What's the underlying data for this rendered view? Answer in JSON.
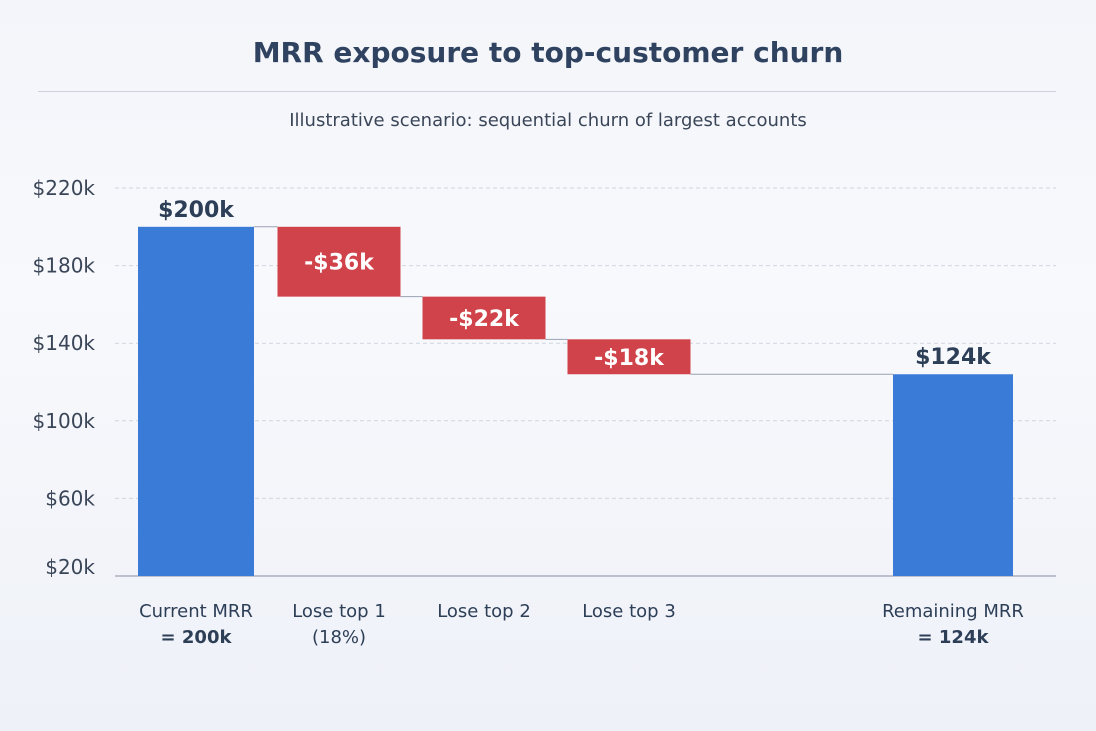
{
  "chart_data": {
    "type": "waterfall",
    "title": "MRR exposure to top-customer churn",
    "subtitle": "Illustrative scenario: sequential churn of largest accounts",
    "categories": [
      "Current MRR\n= 200k",
      "Lose top 1\n(18%)",
      "Lose top 2",
      "Lose top 3",
      "Remaining MRR\n= 124k"
    ],
    "values": [
      200,
      -36,
      -22,
      -18,
      124
    ],
    "kinds": [
      "total",
      "delta",
      "delta",
      "delta",
      "total"
    ],
    "data_labels": [
      "$200k",
      "-$36k",
      "-$22k",
      "-$18k",
      "$124k"
    ],
    "y_ticks": [
      20,
      60,
      100,
      140,
      180,
      220
    ],
    "y_tick_labels": [
      "$20k",
      "$60k",
      "$100k",
      "$140k",
      "$180k",
      "$220k"
    ],
    "ylim": [
      20,
      220
    ],
    "xlabel": "",
    "ylabel": "",
    "grid": true,
    "colors": {
      "total": "#3b7bd8",
      "delta": "#d0434a",
      "text": "#2d3e57"
    }
  }
}
